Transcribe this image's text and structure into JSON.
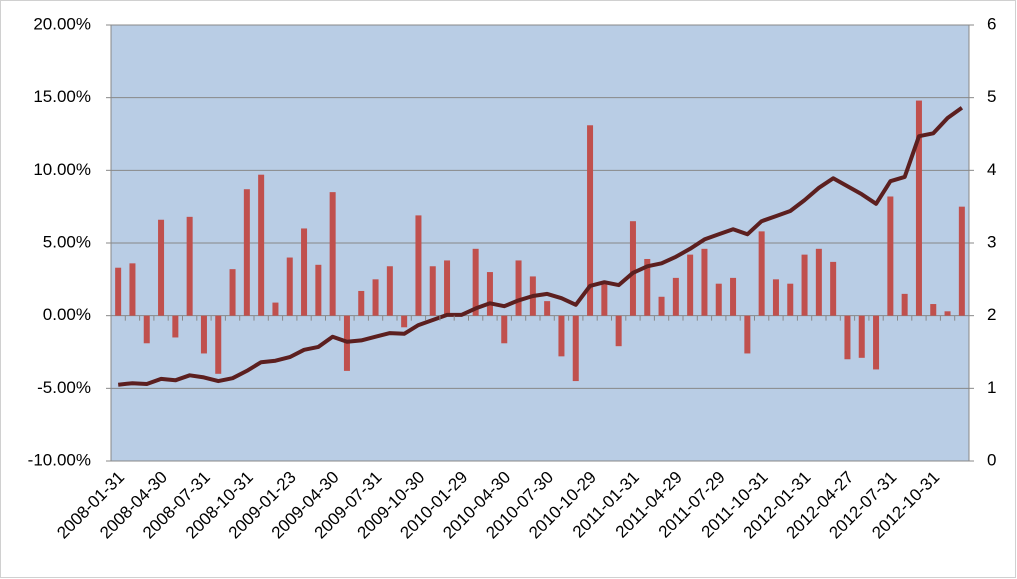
{
  "chart_data": {
    "type": "bar_line",
    "categories": [
      "2008-01-31",
      null,
      null,
      "2008-04-30",
      null,
      null,
      "2008-07-31",
      null,
      null,
      "2008-10-31",
      null,
      null,
      "2009-01-23",
      null,
      null,
      "2009-04-30",
      null,
      null,
      "2009-07-31",
      null,
      null,
      "2009-10-30",
      null,
      null,
      "2010-01-29",
      null,
      null,
      "2010-04-30",
      null,
      null,
      "2010-07-30",
      null,
      null,
      "2010-10-29",
      null,
      null,
      "2011-01-31",
      null,
      null,
      "2011-04-29",
      null,
      null,
      "2011-07-29",
      null,
      null,
      "2011-10-31",
      null,
      null,
      "2012-01-31",
      null,
      null,
      "2012-04-27",
      null,
      null,
      "2012-07-31",
      null,
      null,
      "2012-10-31",
      null,
      null
    ],
    "series": [
      {
        "type": "bar",
        "color": "#c0504d",
        "values": [
          3.3,
          3.6,
          -1.9,
          6.6,
          -1.5,
          6.8,
          -2.6,
          -4.0,
          3.2,
          8.7,
          9.7,
          0.9,
          4.0,
          6.0,
          3.5,
          8.5,
          -3.8,
          1.7,
          2.5,
          3.4,
          -0.8,
          6.9,
          3.4,
          3.8,
          0.1,
          4.6,
          3.0,
          -1.9,
          3.8,
          2.7,
          1.0,
          -2.8,
          -4.5,
          13.1,
          2.2,
          -2.1,
          6.5,
          3.9,
          1.3,
          2.6,
          4.2,
          4.6,
          2.2,
          2.6,
          -2.6,
          5.8,
          2.5,
          2.2,
          4.2,
          4.6,
          3.7,
          -3.0,
          -2.9,
          -3.7,
          8.2,
          1.5,
          14.8,
          0.8,
          0.3,
          7.5
        ]
      },
      {
        "type": "line",
        "axis": "y2",
        "color": "#5c1f1f",
        "values": [
          1.05,
          1.07,
          1.06,
          1.13,
          1.11,
          1.18,
          1.15,
          1.1,
          1.14,
          1.24,
          1.36,
          1.38,
          1.43,
          1.53,
          1.57,
          1.71,
          1.64,
          1.66,
          1.71,
          1.76,
          1.75,
          1.87,
          1.94,
          2.01,
          2.01,
          2.1,
          2.17,
          2.13,
          2.21,
          2.27,
          2.3,
          2.24,
          2.15,
          2.41,
          2.46,
          2.42,
          2.59,
          2.68,
          2.72,
          2.81,
          2.92,
          3.05,
          3.12,
          3.19,
          3.12,
          3.3,
          3.37,
          3.44,
          3.59,
          3.76,
          3.89,
          3.78,
          3.67,
          3.54,
          3.85,
          3.91,
          4.47,
          4.51,
          4.72,
          4.86
        ]
      }
    ],
    "ylim": [
      -10,
      20
    ],
    "yticks": [
      {
        "value": -10,
        "label": "-10.00%"
      },
      {
        "value": -5,
        "label": "-5.00%"
      },
      {
        "value": 0,
        "label": "0.00%"
      },
      {
        "value": 5,
        "label": "5.00%"
      },
      {
        "value": 10,
        "label": "10.00%"
      },
      {
        "value": 15,
        "label": "15.00%"
      },
      {
        "value": 20,
        "label": "20.00%"
      }
    ],
    "y2lim": [
      0,
      6
    ],
    "y2ticks": [
      0,
      1,
      2,
      3,
      4,
      5,
      6
    ],
    "grid": true,
    "background": "#b9cde5"
  }
}
